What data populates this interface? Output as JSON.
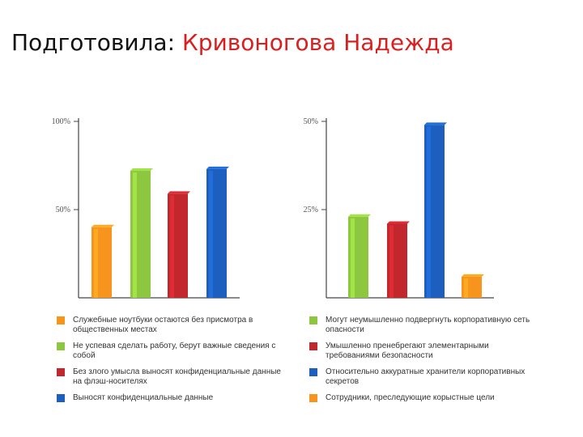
{
  "header": {
    "prefix": "Подготовила:",
    "author": "Кривоногова Надежда"
  },
  "colors": {
    "orange": "#f7941d",
    "green": "#8dc63f",
    "red": "#c1272d",
    "blue": "#1c5fbf"
  },
  "chart_data": [
    {
      "type": "bar",
      "categories": [
        "Служебные ноутбуки остаются без присмотра в общественных местах",
        "Не успевая сделать работу, берут важные сведения с собой",
        "Без злого умысла выносят конфиденциальные данные на флэш-носителях",
        "Выносят конфиденциальные данные"
      ],
      "values": [
        40,
        72,
        59,
        73
      ],
      "colors": [
        "orange",
        "green",
        "red",
        "blue"
      ],
      "ylim": [
        0,
        100
      ],
      "yticks": [
        "100%",
        "50%"
      ],
      "ytick_values": [
        100,
        50
      ],
      "grid": false,
      "legend_position": "bottom"
    },
    {
      "type": "bar",
      "categories": [
        "Могут неумышленно подвергнуть корпоративную сеть опасности",
        "Умышленно пренебрегают элементарными требованиями безопасности",
        "Относительно аккуратные хранители корпоративных секретов",
        "Сотрудники, преследующие корыстные цели"
      ],
      "values": [
        23,
        21,
        49,
        6
      ],
      "colors": [
        "green",
        "red",
        "blue",
        "orange"
      ],
      "ylim": [
        0,
        50
      ],
      "yticks": [
        "50%",
        "25%"
      ],
      "ytick_values": [
        50,
        25
      ],
      "grid": false,
      "legend_position": "bottom"
    }
  ]
}
